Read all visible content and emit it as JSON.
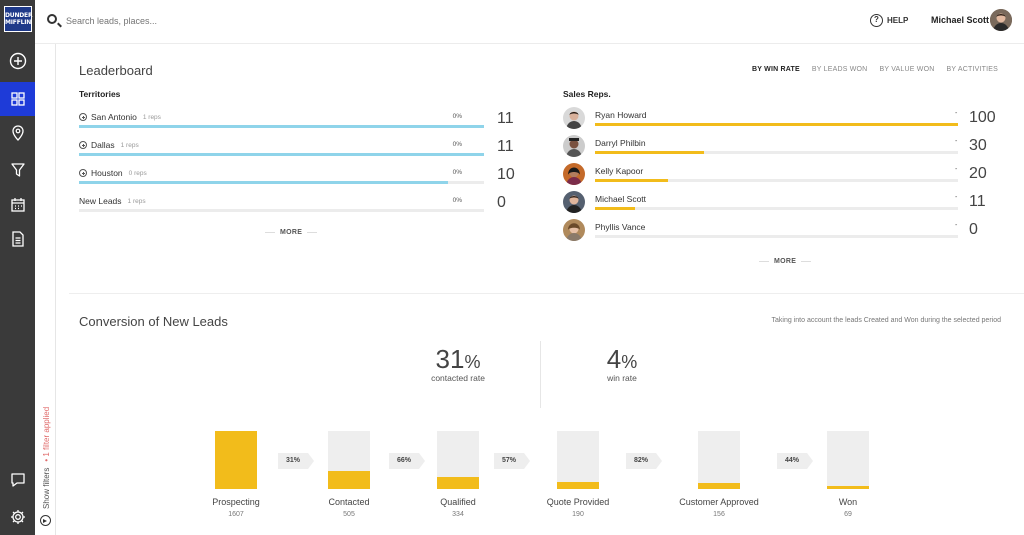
{
  "nav": {
    "logo_line1": "DUNDER",
    "logo_line2": "MIFFLIN",
    "accent": "#1e3bd8",
    "items": [
      "plus-circle-icon",
      "dashboard-icon",
      "map-pin-icon",
      "filter-icon",
      "calendar-icon",
      "document-icon"
    ],
    "bottom_items": [
      "chat-icon",
      "gear-icon"
    ]
  },
  "filters": {
    "show_label": "Show filters",
    "applied": "• 1 filter applied"
  },
  "topbar": {
    "search_placeholder": "Search leads, places...",
    "help_label": "HELP",
    "user_name": "Michael Scott"
  },
  "leaderboard": {
    "title": "Leaderboard",
    "sort_tabs": [
      "BY WIN RATE",
      "BY LEADS WON",
      "BY VALUE WON",
      "BY ACTIVITIES"
    ],
    "active_tab": "BY WIN RATE",
    "territories_title": "Territories",
    "territories": [
      {
        "name": "San Antonio",
        "reps": "1 reps",
        "pct": "0%",
        "value": "11",
        "fill": 1.0
      },
      {
        "name": "Dallas",
        "reps": "1 reps",
        "pct": "0%",
        "value": "11",
        "fill": 1.0
      },
      {
        "name": "Houston",
        "reps": "0 reps",
        "pct": "0%",
        "value": "10",
        "fill": 0.91
      },
      {
        "name": "New Leads",
        "reps": "1 reps",
        "pct": "0%",
        "value": "0",
        "fill": 0
      }
    ],
    "territories_more": "MORE",
    "reps_title": "Sales Reps.",
    "reps": [
      {
        "name": "Ryan Howard",
        "dash": "-",
        "value": "100",
        "fill": 1.0
      },
      {
        "name": "Darryl Philbin",
        "dash": "-",
        "value": "30",
        "fill": 0.3
      },
      {
        "name": "Kelly Kapoor",
        "dash": "-",
        "value": "20",
        "fill": 0.2
      },
      {
        "name": "Michael Scott",
        "dash": "-",
        "value": "11",
        "fill": 0.11
      },
      {
        "name": "Phyllis Vance",
        "dash": "-",
        "value": "0",
        "fill": 0
      }
    ],
    "reps_more": "MORE",
    "territory_color": "#8fd4ea",
    "rep_color": "#f2bc1b"
  },
  "conversion": {
    "title": "Conversion of New Leads",
    "note": "Taking into account the leads Created and Won during the selected period",
    "contacted_rate": "31",
    "contacted_label": "contacted rate",
    "win_rate": "4",
    "win_label": "win rate",
    "percent_sign": "%",
    "stages": [
      {
        "name": "Prospecting",
        "count": "1607",
        "fill": 1.0
      },
      {
        "name": "Contacted",
        "count": "505",
        "fill": 0.31
      },
      {
        "name": "Qualified",
        "count": "334",
        "fill": 0.21
      },
      {
        "name": "Quote Provided",
        "count": "190",
        "fill": 0.12
      },
      {
        "name": "Customer Approved",
        "count": "156",
        "fill": 0.1
      },
      {
        "name": "Won",
        "count": "69",
        "fill": 0.04
      }
    ],
    "rates": [
      "31%",
      "66%",
      "57%",
      "82%",
      "44%"
    ]
  }
}
